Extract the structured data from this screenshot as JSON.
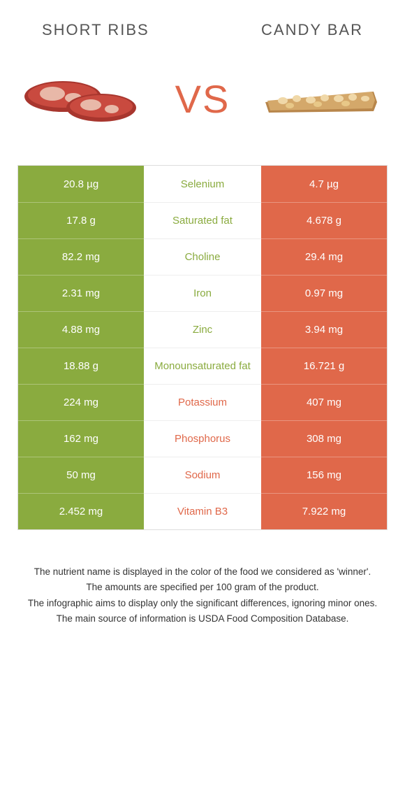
{
  "header": {
    "left_title": "SHORT RIBS",
    "right_title": "CANDY BAR",
    "vs": "VS"
  },
  "colors": {
    "green": "#8aab3f",
    "orange": "#e0684a"
  },
  "rows": [
    {
      "left": "20.8 µg",
      "nutrient": "Selenium",
      "right": "4.7 µg",
      "winner": "left"
    },
    {
      "left": "17.8 g",
      "nutrient": "Saturated fat",
      "right": "4.678 g",
      "winner": "left"
    },
    {
      "left": "82.2 mg",
      "nutrient": "Choline",
      "right": "29.4 mg",
      "winner": "left"
    },
    {
      "left": "2.31 mg",
      "nutrient": "Iron",
      "right": "0.97 mg",
      "winner": "left"
    },
    {
      "left": "4.88 mg",
      "nutrient": "Zinc",
      "right": "3.94 mg",
      "winner": "left"
    },
    {
      "left": "18.88 g",
      "nutrient": "Monounsaturated fat",
      "right": "16.721 g",
      "winner": "left"
    },
    {
      "left": "224 mg",
      "nutrient": "Potassium",
      "right": "407 mg",
      "winner": "right"
    },
    {
      "left": "162 mg",
      "nutrient": "Phosphorus",
      "right": "308 mg",
      "winner": "right"
    },
    {
      "left": "50 mg",
      "nutrient": "Sodium",
      "right": "156 mg",
      "winner": "right"
    },
    {
      "left": "2.452 mg",
      "nutrient": "Vitamin B3",
      "right": "7.922 mg",
      "winner": "right"
    }
  ],
  "footer": {
    "line1": "The nutrient name is displayed in the color of the food we considered as 'winner'.",
    "line2": "The amounts are specified per 100 gram of the product.",
    "line3": "The infographic aims to display only the significant differences, ignoring minor ones.",
    "line4": "The main source of information is USDA Food Composition Database."
  }
}
